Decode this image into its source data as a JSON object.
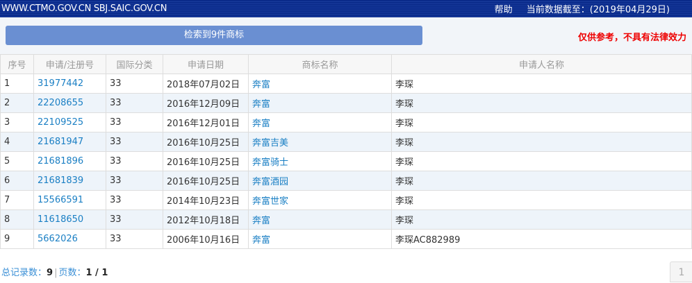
{
  "header": {
    "site": "WWW.CTMO.GOV.CN SBJ.SAIC.GOV.CN",
    "help": "帮助",
    "data_date": "当前数据截至：(2019年04月29日)"
  },
  "search_result": "检索到9件商标",
  "notice": "仅供参考，不具有法律效力",
  "columns": [
    "序号",
    "申请/注册号",
    "国际分类",
    "申请日期",
    "商标名称",
    "申请人名称"
  ],
  "rows": [
    [
      "1",
      "31977442",
      "33",
      "2018年07月02日",
      "奔富",
      "李琛"
    ],
    [
      "2",
      "22208655",
      "33",
      "2016年12月09日",
      "奔富",
      "李琛"
    ],
    [
      "3",
      "22109525",
      "33",
      "2016年12月01日",
      "奔富",
      "李琛"
    ],
    [
      "4",
      "21681947",
      "33",
      "2016年10月25日",
      "奔富吉美",
      "李琛"
    ],
    [
      "5",
      "21681896",
      "33",
      "2016年10月25日",
      "奔富骑士",
      "李琛"
    ],
    [
      "6",
      "21681839",
      "33",
      "2016年10月25日",
      "奔富酒园",
      "李琛"
    ],
    [
      "7",
      "15566591",
      "33",
      "2014年10月23日",
      "奔富世家",
      "李琛"
    ],
    [
      "8",
      "11618650",
      "33",
      "2012年10月18日",
      "奔富",
      "李琛"
    ],
    [
      "9",
      "5662026",
      "33",
      "2006年10月16日",
      "奔富",
      "李琛AC882989"
    ]
  ],
  "footer": {
    "total_label": "总记录数：",
    "total": "9",
    "pages_label": "页数：",
    "pages": "1 / 1"
  },
  "pager": {
    "current": "1"
  }
}
